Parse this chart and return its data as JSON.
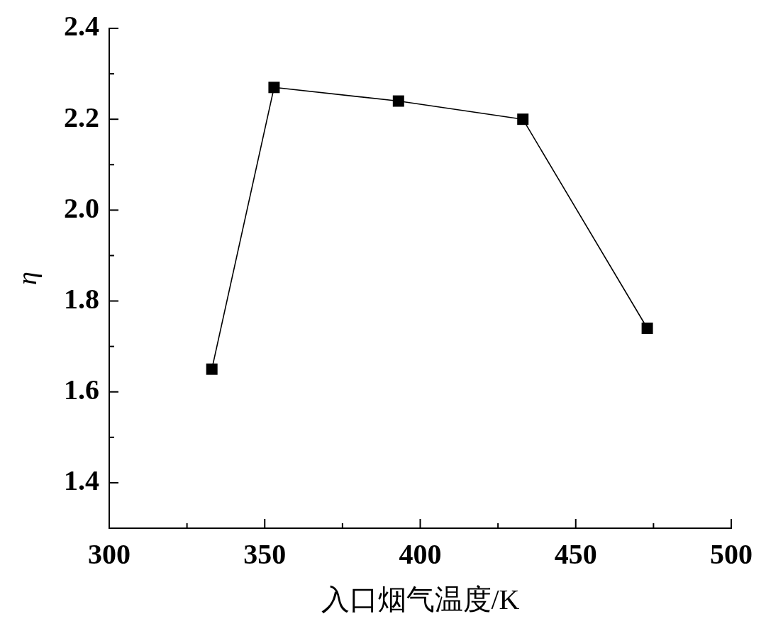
{
  "chart_data": {
    "type": "line",
    "xlabel": "入口烟气温度/K",
    "ylabel": "η",
    "x": [
      333,
      353,
      393,
      433,
      473
    ],
    "series": [
      {
        "color": "#000000",
        "values": [
          1.65,
          2.27,
          2.24,
          2.2,
          1.74
        ]
      }
    ],
    "xlim": [
      300,
      500
    ],
    "ylim": [
      1.3,
      2.4
    ],
    "xticks": [
      300,
      {
        "value": 325,
        "label": null
      },
      350,
      {
        "value": 375,
        "label": null
      },
      400,
      {
        "value": 425,
        "label": null
      },
      450,
      {
        "value": 475,
        "label": null
      },
      500
    ],
    "yticks": [
      1.4,
      {
        "value": 1.5,
        "label": null
      },
      1.6,
      {
        "value": 1.7,
        "label": null
      },
      1.8,
      {
        "value": 1.9,
        "label": null
      },
      {
        "value": 2,
        "label": "2.0"
      },
      {
        "value": 2.1,
        "label": null
      },
      2.2,
      {
        "value": 2.3,
        "label": null
      },
      2.4
    ],
    "marker": "square",
    "line_style": "solid"
  }
}
